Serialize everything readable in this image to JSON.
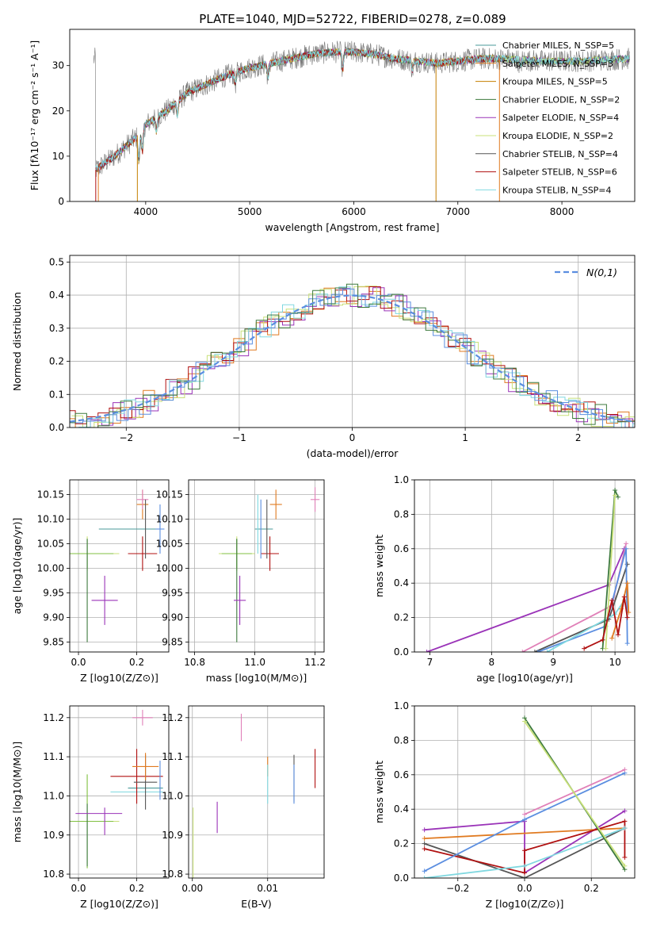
{
  "figure_title": "PLATE=1040, MJD=52722, FIBERID=0278, z=0.089",
  "colors": [
    "#4a9a9a",
    "#e07a20",
    "#c47f00",
    "#3d7a3d",
    "#9a33b8",
    "#c8e07a",
    "#555555",
    "#b01010",
    "#80d8e0",
    "#5b8ee0",
    "#e080b8"
  ],
  "chart_data": [
    {
      "id": "spectrum",
      "type": "line",
      "title": "PLATE=1040, MJD=52722, FIBERID=0278, z=0.089",
      "xlabel": "wavelength [Angstrom, rest frame]",
      "ylabel": "Flux [fλ10⁻¹⁷ erg cm⁻² s⁻¹ A⁻¹]",
      "xlim": [
        3270,
        8700
      ],
      "ylim": [
        0,
        38
      ],
      "xticks": [
        4000,
        5000,
        6000,
        7000,
        8000
      ],
      "yticks": [
        0,
        10,
        20,
        30
      ],
      "grid": false,
      "legend_position": "top-right",
      "continuum": [
        [
          3520,
          7
        ],
        [
          3700,
          10
        ],
        [
          3900,
          14
        ],
        [
          4000,
          17
        ],
        [
          4200,
          20
        ],
        [
          4400,
          24
        ],
        [
          4600,
          26
        ],
        [
          4800,
          28
        ],
        [
          5000,
          29.5
        ],
        [
          5200,
          30.5
        ],
        [
          5400,
          31.5
        ],
        [
          5600,
          32.5
        ],
        [
          5800,
          33
        ],
        [
          6000,
          33
        ],
        [
          6200,
          32.5
        ],
        [
          6400,
          31.5
        ],
        [
          6600,
          31
        ],
        [
          6800,
          30.5
        ],
        [
          7000,
          31
        ],
        [
          7200,
          31.5
        ],
        [
          7400,
          31.5
        ],
        [
          7800,
          31
        ],
        [
          8200,
          31
        ],
        [
          8600,
          31.5
        ]
      ],
      "series": [
        {
          "name": "Chabrier MILES, N_SSP=5",
          "color": "#4a9a9a"
        },
        {
          "name": "Salpeter MILES, N_SSP=3",
          "color": "#e07a20"
        },
        {
          "name": "Kroupa MILES, N_SSP=5",
          "color": "#c47f00"
        },
        {
          "name": "Chabrier ELODIE, N_SSP=2",
          "color": "#3d7a3d"
        },
        {
          "name": "Salpeter ELODIE, N_SSP=4",
          "color": "#9a33b8"
        },
        {
          "name": "Kroupa ELODIE, N_SSP=2",
          "color": "#c8e07a"
        },
        {
          "name": "Chabrier STELIB, N_SSP=4",
          "color": "#555555"
        },
        {
          "name": "Salpeter STELIB, N_SSP=6",
          "color": "#b01010"
        },
        {
          "name": "Kroupa STELIB, N_SSP=4",
          "color": "#80d8e0"
        }
      ]
    },
    {
      "id": "residuals",
      "type": "histogram",
      "xlabel": "(data-model)/error",
      "ylabel": "Normed distribution",
      "xlim": [
        -2.5,
        2.5
      ],
      "ylim": [
        0,
        0.52
      ],
      "xticks": [
        -2,
        -1,
        0,
        1,
        2
      ],
      "yticks": [
        0.0,
        0.1,
        0.2,
        0.3,
        0.4,
        0.5
      ],
      "grid": true,
      "legend_position": "top-right",
      "reference_curve": {
        "name": "N(0,1)",
        "mean": 0,
        "sigma": 1,
        "color": "#5b8ee0"
      },
      "series_colors": [
        "#e07a20",
        "#9a33b8",
        "#c8e07a",
        "#b01010",
        "#80d8e0",
        "#5b8ee0",
        "#3d7a3d"
      ]
    },
    {
      "id": "age-vs-Z",
      "type": "errorbar",
      "xlabel": "Z [log10(Z/Z⊙)]",
      "ylabel": "age [log10(age/yr)]",
      "xlim": [
        -0.03,
        0.31
      ],
      "ylim": [
        9.83,
        10.18
      ],
      "xticks": [
        0.0,
        0.2
      ],
      "yticks": [
        9.85,
        9.9,
        9.95,
        10.0,
        10.05,
        10.1,
        10.15
      ],
      "grid": true,
      "points": [
        {
          "x": 0.03,
          "y": 10.03,
          "xerr": 0.11,
          "yerr": 0.035,
          "color": "#c8e07a"
        },
        {
          "x": 0.03,
          "y": 10.03,
          "xerr": 0.09,
          "yerr": 0.03,
          "color": "#80c040"
        },
        {
          "x": 0.03,
          "y": 9.955,
          "xerr": 0.0,
          "yerr": 0.105,
          "color": "#3d7a3d"
        },
        {
          "x": 0.09,
          "y": 9.935,
          "xerr": 0.045,
          "yerr": 0.05,
          "color": "#9a33b8"
        },
        {
          "x": 0.18,
          "y": 10.08,
          "xerr": 0.11,
          "yerr": 0.0,
          "color": "#4a9a9a"
        },
        {
          "x": 0.22,
          "y": 10.03,
          "xerr": 0.05,
          "yerr": 0.035,
          "color": "#b01010"
        },
        {
          "x": 0.22,
          "y": 10.13,
          "xerr": 0.02,
          "yerr": 0.03,
          "color": "#e07a20"
        },
        {
          "x": 0.22,
          "y": 10.14,
          "xerr": 0.02,
          "yerr": 0.02,
          "color": "#e080b8"
        },
        {
          "x": 0.28,
          "y": 10.08,
          "xerr": 0.015,
          "yerr": 0.05,
          "color": "#5b8ee0"
        },
        {
          "x": 0.23,
          "y": 10.08,
          "xerr": 0.0,
          "yerr": 0.06,
          "color": "#555555"
        }
      ]
    },
    {
      "id": "age-vs-mass",
      "type": "errorbar",
      "xlabel": "mass [log10(M/M⊙)]",
      "ylabel": "",
      "xlim": [
        10.78,
        11.23
      ],
      "ylim": [
        9.83,
        10.18
      ],
      "xticks": [
        10.8,
        11.0,
        11.2
      ],
      "yticks": [
        9.85,
        9.9,
        9.95,
        10.0,
        10.05,
        10.1,
        10.15
      ],
      "grid": true,
      "points": [
        {
          "x": 10.94,
          "y": 10.03,
          "xerr": 0.06,
          "yerr": 0.035,
          "color": "#c8e07a"
        },
        {
          "x": 10.94,
          "y": 10.03,
          "xerr": 0.05,
          "yerr": 0.03,
          "color": "#80c040"
        },
        {
          "x": 10.94,
          "y": 9.955,
          "xerr": 0.0,
          "yerr": 0.105,
          "color": "#3d7a3d"
        },
        {
          "x": 10.95,
          "y": 9.935,
          "xerr": 0.02,
          "yerr": 0.05,
          "color": "#9a33b8"
        },
        {
          "x": 11.03,
          "y": 10.08,
          "xerr": 0.03,
          "yerr": 0.0,
          "color": "#4a9a9a"
        },
        {
          "x": 11.05,
          "y": 10.03,
          "xerr": 0.03,
          "yerr": 0.035,
          "color": "#b01010"
        },
        {
          "x": 11.07,
          "y": 10.13,
          "xerr": 0.02,
          "yerr": 0.03,
          "color": "#e07a20"
        },
        {
          "x": 11.2,
          "y": 10.14,
          "xerr": 0.015,
          "yerr": 0.025,
          "color": "#e080b8"
        },
        {
          "x": 11.02,
          "y": 10.08,
          "xerr": 0.0,
          "yerr": 0.06,
          "color": "#5b8ee0"
        },
        {
          "x": 11.04,
          "y": 10.08,
          "xerr": 0.0,
          "yerr": 0.06,
          "color": "#555555"
        },
        {
          "x": 11.01,
          "y": 10.09,
          "xerr": 0.0,
          "yerr": 0.06,
          "color": "#80d8e0"
        }
      ]
    },
    {
      "id": "weight-vs-age",
      "type": "line",
      "xlabel": "age [log10(age/yr)]",
      "ylabel": "mass weight",
      "xlim": [
        6.75,
        10.32
      ],
      "ylim": [
        0,
        1
      ],
      "xticks": [
        7,
        8,
        9,
        10
      ],
      "yticks": [
        0.0,
        0.2,
        0.4,
        0.6,
        0.8,
        1.0
      ],
      "grid": true,
      "series": [
        {
          "color": "#9a33b8",
          "points": [
            [
              6.95,
              0.0
            ],
            [
              9.9,
              0.39
            ],
            [
              10.15,
              0.6
            ]
          ]
        },
        {
          "color": "#e080b8",
          "points": [
            [
              8.5,
              0.0
            ],
            [
              9.95,
              0.27
            ],
            [
              10.18,
              0.63
            ]
          ]
        },
        {
          "color": "#555555",
          "points": [
            [
              8.7,
              0.0
            ],
            [
              9.9,
              0.19
            ],
            [
              10.2,
              0.51
            ]
          ]
        },
        {
          "color": "#5b8ee0",
          "points": [
            [
              8.75,
              0.0
            ],
            [
              9.85,
              0.15
            ],
            [
              10.18,
              0.6
            ],
            [
              10.2,
              0.05
            ]
          ]
        },
        {
          "color": "#80d8e0",
          "points": [
            [
              8.9,
              0.0
            ],
            [
              10.0,
              0.22
            ],
            [
              10.15,
              0.3
            ]
          ]
        },
        {
          "color": "#3d7a3d",
          "points": [
            [
              9.8,
              0.02
            ],
            [
              10.0,
              0.94
            ],
            [
              10.05,
              0.9
            ]
          ]
        },
        {
          "color": "#c8e07a",
          "points": [
            [
              9.85,
              0.02
            ],
            [
              10.0,
              0.91
            ]
          ]
        },
        {
          "color": "#e07a20",
          "points": [
            [
              9.95,
              0.08
            ],
            [
              10.1,
              0.25
            ],
            [
              10.2,
              0.4
            ],
            [
              10.22,
              0.23
            ]
          ]
        },
        {
          "color": "#b01010",
          "points": [
            [
              9.5,
              0.02
            ],
            [
              9.8,
              0.07
            ],
            [
              9.95,
              0.3
            ],
            [
              10.05,
              0.1
            ],
            [
              10.15,
              0.32
            ],
            [
              10.2,
              0.2
            ]
          ]
        }
      ]
    },
    {
      "id": "mass-vs-Z",
      "type": "errorbar",
      "xlabel": "Z [log10(Z/Z⊙)]",
      "ylabel": "mass [log10(M/M⊙)]",
      "xlim": [
        -0.03,
        0.31
      ],
      "ylim": [
        10.79,
        11.23
      ],
      "xticks": [
        0.0,
        0.2
      ],
      "yticks": [
        10.8,
        10.9,
        11.0,
        11.1,
        11.2
      ],
      "grid": true,
      "points": [
        {
          "x": 0.03,
          "y": 10.935,
          "xerr": 0.11,
          "yerr": 0.0,
          "color": "#c8e07a"
        },
        {
          "x": 0.03,
          "y": 10.935,
          "xerr": 0.09,
          "yerr": 0.12,
          "color": "#80c040"
        },
        {
          "x": 0.03,
          "y": 10.9,
          "xerr": 0.0,
          "yerr": 0.08,
          "color": "#3d7a3d"
        },
        {
          "x": 0.07,
          "y": 10.955,
          "xerr": 0.08,
          "yerr": 0.0,
          "color": "#9a33b8"
        },
        {
          "x": 0.09,
          "y": 10.935,
          "xerr": 0.0,
          "yerr": 0.035,
          "color": "#9a33b8"
        },
        {
          "x": 0.2,
          "y": 11.01,
          "xerr": 0.09,
          "yerr": 0.0,
          "color": "#80d8e0"
        },
        {
          "x": 0.23,
          "y": 11.02,
          "xerr": 0.06,
          "yerr": 0.0,
          "color": "#4a9a9a"
        },
        {
          "x": 0.2,
          "y": 11.05,
          "xerr": 0.09,
          "yerr": 0.07,
          "color": "#b01010"
        },
        {
          "x": 0.23,
          "y": 11.035,
          "xerr": 0.04,
          "yerr": 0.07,
          "color": "#555555"
        },
        {
          "x": 0.23,
          "y": 11.075,
          "xerr": 0.045,
          "yerr": 0.035,
          "color": "#e07a20"
        },
        {
          "x": 0.22,
          "y": 11.2,
          "xerr": 0.035,
          "yerr": 0.02,
          "color": "#e080b8"
        },
        {
          "x": 0.28,
          "y": 11.04,
          "xerr": 0.0,
          "yerr": 0.05,
          "color": "#5b8ee0"
        }
      ]
    },
    {
      "id": "mass-vs-EBV",
      "type": "errorbar",
      "xlabel": "E(B-V)",
      "ylabel": "",
      "xlim": [
        -0.0005,
        0.0175
      ],
      "ylim": [
        10.79,
        11.23
      ],
      "xticks": [
        0.0,
        0.01
      ],
      "yticks": [
        10.8,
        10.9,
        11.0,
        11.1,
        11.2
      ],
      "grid": true,
      "points": [
        {
          "x": 0.0001,
          "y": 10.88,
          "xerr": 0.0,
          "yerr": 0.09,
          "color": "#c8e07a"
        },
        {
          "x": 0.0033,
          "y": 10.945,
          "xerr": 0.0,
          "yerr": 0.04,
          "color": "#9a33b8"
        },
        {
          "x": 0.0065,
          "y": 11.175,
          "xerr": 0.0,
          "yerr": 0.035,
          "color": "#e080b8"
        },
        {
          "x": 0.01,
          "y": 11.075,
          "xerr": 0.0,
          "yerr": 0.025,
          "color": "#e07a20"
        },
        {
          "x": 0.01,
          "y": 11.03,
          "xerr": 0.0,
          "yerr": 0.05,
          "color": "#80d8e0"
        },
        {
          "x": 0.0135,
          "y": 11.045,
          "xerr": 0.0,
          "yerr": 0.06,
          "color": "#555555"
        },
        {
          "x": 0.0135,
          "y": 11.03,
          "xerr": 0.0,
          "yerr": 0.05,
          "color": "#5b8ee0"
        },
        {
          "x": 0.0163,
          "y": 11.07,
          "xerr": 0.0,
          "yerr": 0.05,
          "color": "#b01010"
        }
      ]
    },
    {
      "id": "weight-vs-Z",
      "type": "line",
      "xlabel": "Z [log10(Z/Z⊙)]",
      "ylabel": "mass weight",
      "xlim": [
        -0.33,
        0.33
      ],
      "ylim": [
        0,
        1
      ],
      "xticks": [
        -0.2,
        0.0,
        0.2
      ],
      "yticks": [
        0.0,
        0.2,
        0.4,
        0.6,
        0.8,
        1.0
      ],
      "grid": true,
      "series": [
        {
          "color": "#9a33b8",
          "points": [
            [
              -0.3,
              0.28
            ],
            [
              0.0,
              0.33
            ],
            [
              0.0,
              0.03
            ],
            [
              0.3,
              0.39
            ]
          ]
        },
        {
          "color": "#e07a20",
          "points": [
            [
              -0.3,
              0.23
            ],
            [
              0.3,
              0.29
            ]
          ]
        },
        {
          "color": "#555555",
          "points": [
            [
              -0.3,
              0.2
            ],
            [
              0.0,
              0.0
            ],
            [
              0.3,
              0.29
            ]
          ]
        },
        {
          "color": "#b01010",
          "points": [
            [
              -0.3,
              0.17
            ],
            [
              0.0,
              0.03
            ],
            [
              0.0,
              0.16
            ],
            [
              0.3,
              0.33
            ],
            [
              0.3,
              0.12
            ]
          ]
        },
        {
          "color": "#80d8e0",
          "points": [
            [
              -0.3,
              0.0
            ],
            [
              0.0,
              0.07
            ],
            [
              0.3,
              0.29
            ]
          ]
        },
        {
          "color": "#5b8ee0",
          "points": [
            [
              -0.3,
              0.04
            ],
            [
              0.0,
              0.34
            ],
            [
              0.3,
              0.61
            ]
          ]
        },
        {
          "color": "#e080b8",
          "points": [
            [
              0.0,
              0.37
            ],
            [
              0.3,
              0.63
            ]
          ]
        },
        {
          "color": "#3d7a3d",
          "points": [
            [
              0.0,
              0.93
            ],
            [
              0.3,
              0.05
            ]
          ]
        },
        {
          "color": "#c8e07a",
          "points": [
            [
              0.0,
              0.91
            ],
            [
              0.3,
              0.07
            ]
          ]
        }
      ]
    }
  ]
}
